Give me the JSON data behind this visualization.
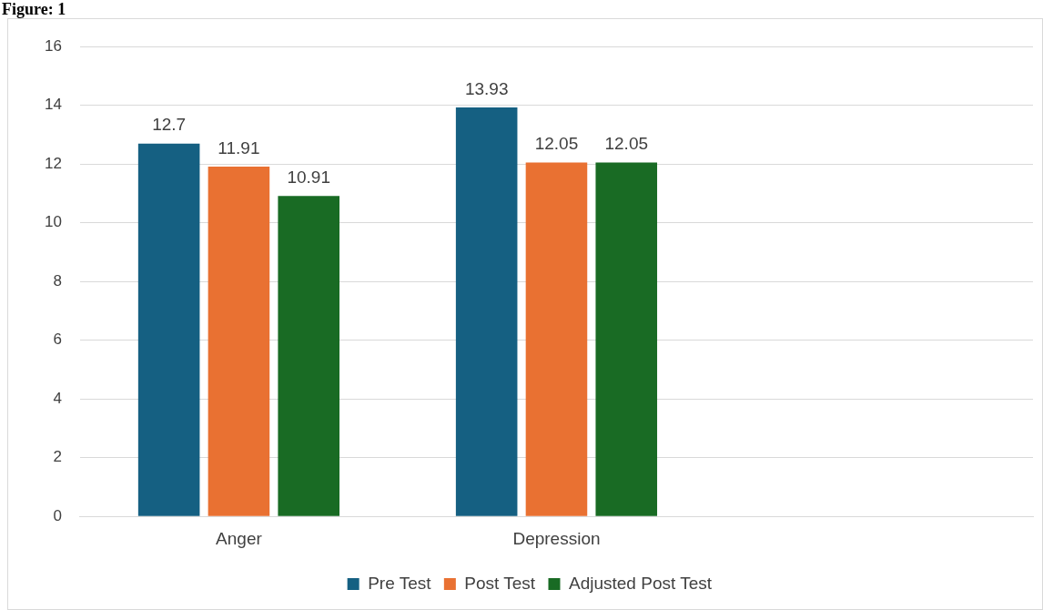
{
  "chart_data": {
    "type": "bar",
    "title": "Figure: 1",
    "categories": [
      "Anger",
      "Depression",
      null
    ],
    "series": [
      {
        "name": "Pre Test",
        "color": "#156082",
        "values": [
          12.7,
          13.93,
          null
        ]
      },
      {
        "name": "Post Test",
        "color": "#e97132",
        "values": [
          11.91,
          12.05,
          null
        ]
      },
      {
        "name": "Adjusted Post Test",
        "color": "#196b24",
        "values": [
          10.91,
          12.05,
          null
        ]
      }
    ],
    "ylim": [
      0,
      16
    ],
    "yticks": [
      0,
      2,
      4,
      6,
      8,
      10,
      12,
      14,
      16
    ],
    "grid": "y",
    "legend": "bottom",
    "data_labels": true
  }
}
